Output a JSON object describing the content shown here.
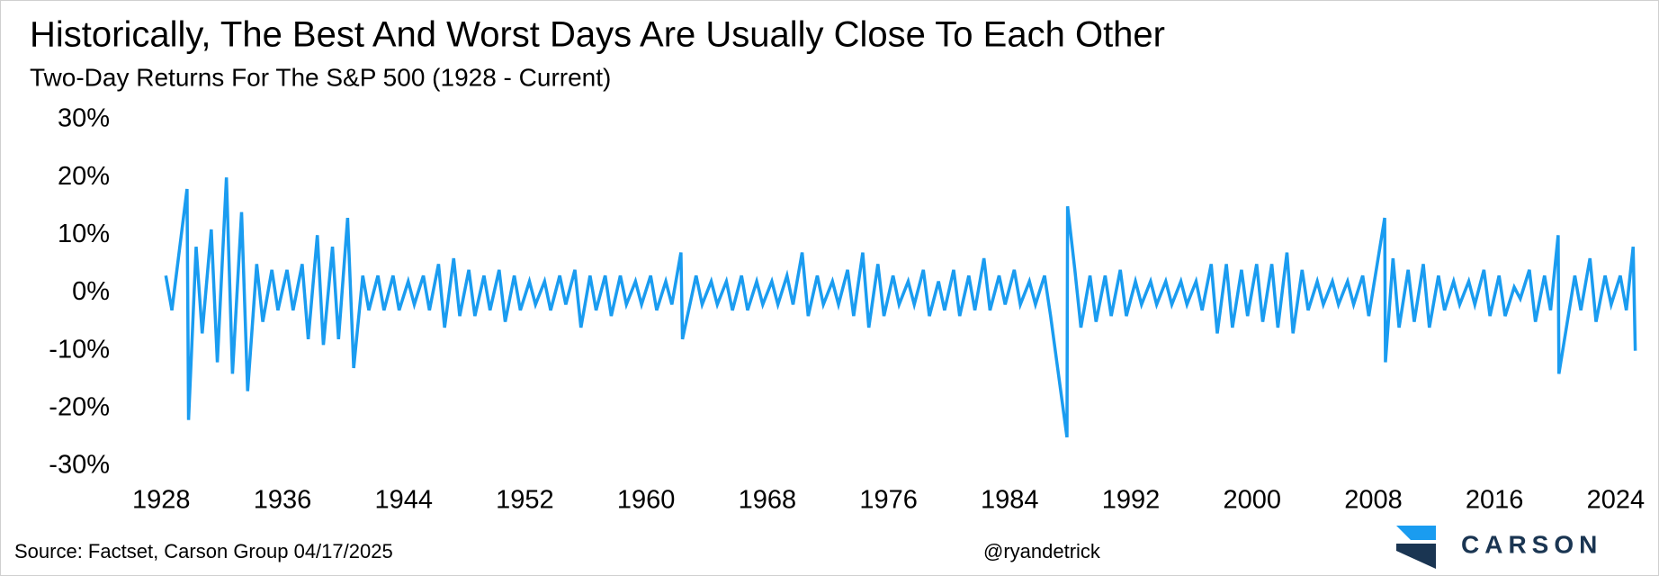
{
  "chart_data": {
    "type": "line",
    "title": "Historically, The Best And Worst Days Are Usually Close To Each Other",
    "subtitle": "Two-Day Returns For The S&P 500 (1928 - Current)",
    "source": "Source: Factset, Carson Group 04/17/2025",
    "handle": "@ryandetrick",
    "brand": "CARSON",
    "xlim": [
      1926.5,
      2026.5
    ],
    "xticks": [
      1928,
      1936,
      1944,
      1952,
      1960,
      1968,
      1976,
      1984,
      1992,
      2000,
      2008,
      2016,
      2024
    ],
    "ylim": [
      -30,
      30
    ],
    "yticks": [
      {
        "value": 30,
        "label": "30%"
      },
      {
        "value": 20,
        "label": "20%"
      },
      {
        "value": 10,
        "label": "10%"
      },
      {
        "value": 0,
        "label": "0%"
      },
      {
        "value": -10,
        "label": "-10%"
      },
      {
        "value": -20,
        "label": "-20%"
      },
      {
        "value": -30,
        "label": "-30%"
      }
    ],
    "series": [
      {
        "color": "#1a9cf0",
        "x": [
          1928.3,
          1928.7,
          1929.7,
          1929.8,
          1930.3,
          1930.7,
          1931.3,
          1931.7,
          1932.3,
          1932.7,
          1933.3,
          1933.7,
          1934.3,
          1934.7,
          1935.3,
          1935.7,
          1936.3,
          1936.7,
          1937.3,
          1937.7,
          1938.3,
          1938.7,
          1939.3,
          1939.7,
          1940.3,
          1940.7,
          1941.3,
          1941.7,
          1942.3,
          1942.7,
          1943.3,
          1943.7,
          1944.3,
          1944.7,
          1945.3,
          1945.7,
          1946.3,
          1946.7,
          1947.3,
          1947.7,
          1948.3,
          1948.7,
          1949.3,
          1949.7,
          1950.3,
          1950.7,
          1951.3,
          1951.7,
          1952.3,
          1952.7,
          1953.3,
          1953.7,
          1954.3,
          1954.7,
          1955.3,
          1955.7,
          1956.3,
          1956.7,
          1957.3,
          1957.7,
          1958.3,
          1958.7,
          1959.3,
          1959.7,
          1960.3,
          1960.7,
          1961.3,
          1961.7,
          1962.3,
          1962.4,
          1963.3,
          1963.7,
          1964.3,
          1964.7,
          1965.3,
          1965.7,
          1966.3,
          1966.7,
          1967.3,
          1967.7,
          1968.3,
          1968.7,
          1969.3,
          1969.7,
          1970.3,
          1970.7,
          1971.3,
          1971.7,
          1972.3,
          1972.7,
          1973.3,
          1973.7,
          1974.3,
          1974.7,
          1975.3,
          1975.7,
          1976.3,
          1976.7,
          1977.3,
          1977.7,
          1978.3,
          1978.7,
          1979.3,
          1979.7,
          1980.3,
          1980.7,
          1981.3,
          1981.7,
          1982.3,
          1982.7,
          1983.3,
          1983.7,
          1984.3,
          1984.7,
          1985.3,
          1985.7,
          1986.3,
          1986.7,
          1987.78,
          1987.82,
          1988.3,
          1988.7,
          1989.3,
          1989.7,
          1990.3,
          1990.7,
          1991.3,
          1991.7,
          1992.3,
          1992.7,
          1993.3,
          1993.7,
          1994.3,
          1994.7,
          1995.3,
          1995.7,
          1996.3,
          1996.7,
          1997.3,
          1997.7,
          1998.3,
          1998.7,
          1999.3,
          1999.7,
          2000.3,
          2000.7,
          2001.3,
          2001.7,
          2002.3,
          2002.7,
          2003.3,
          2003.7,
          2004.3,
          2004.7,
          2005.3,
          2005.7,
          2006.3,
          2006.7,
          2007.3,
          2007.7,
          2008.75,
          2008.8,
          2009.3,
          2009.7,
          2010.3,
          2010.7,
          2011.3,
          2011.7,
          2012.3,
          2012.7,
          2013.3,
          2013.7,
          2014.3,
          2014.7,
          2015.3,
          2015.7,
          2016.3,
          2016.7,
          2017.3,
          2017.7,
          2018.3,
          2018.7,
          2019.3,
          2019.7,
          2020.2,
          2020.25,
          2021.3,
          2021.7,
          2022.3,
          2022.7,
          2023.3,
          2023.7,
          2024.3,
          2024.7,
          2025.15,
          2025.29
        ],
        "values": [
          3,
          -3,
          18,
          -22,
          8,
          -7,
          11,
          -12,
          20,
          -14,
          14,
          -17,
          5,
          -5,
          4,
          -3,
          4,
          -3,
          5,
          -8,
          10,
          -9,
          8,
          -8,
          13,
          -13,
          3,
          -3,
          3,
          -3,
          3,
          -3,
          2,
          -2,
          3,
          -3,
          5,
          -6,
          6,
          -4,
          4,
          -4,
          3,
          -3,
          4,
          -5,
          3,
          -3,
          2,
          -2,
          2,
          -3,
          3,
          -2,
          4,
          -6,
          3,
          -3,
          3,
          -4,
          3,
          -2,
          2,
          -2,
          3,
          -3,
          2,
          -2,
          7,
          -8,
          3,
          -2,
          2,
          -2,
          2,
          -3,
          3,
          -3,
          2,
          -2,
          2,
          -2,
          3,
          -2,
          7,
          -4,
          3,
          -2,
          2,
          -2,
          4,
          -4,
          7,
          -6,
          5,
          -4,
          3,
          -2,
          2,
          -2,
          4,
          -4,
          2,
          -3,
          4,
          -4,
          3,
          -3,
          6,
          -3,
          3,
          -2,
          4,
          -2,
          2,
          -2,
          3,
          -4,
          -25,
          15,
          4,
          -6,
          3,
          -5,
          3,
          -4,
          4,
          -4,
          2,
          -2,
          2,
          -2,
          2,
          -2,
          2,
          -2,
          2,
          -3,
          5,
          -7,
          5,
          -6,
          4,
          -4,
          5,
          -5,
          5,
          -6,
          7,
          -7,
          4,
          -3,
          2,
          -2,
          2,
          -2,
          2,
          -2,
          3,
          -4,
          13,
          -12,
          6,
          -6,
          4,
          -5,
          5,
          -6,
          3,
          -3,
          2,
          -2,
          2,
          -2,
          4,
          -4,
          3,
          -4,
          1,
          -1,
          4,
          -5,
          3,
          -3,
          10,
          -14,
          3,
          -3,
          6,
          -5,
          3,
          -2,
          3,
          -3,
          8,
          -10
        ]
      }
    ]
  }
}
